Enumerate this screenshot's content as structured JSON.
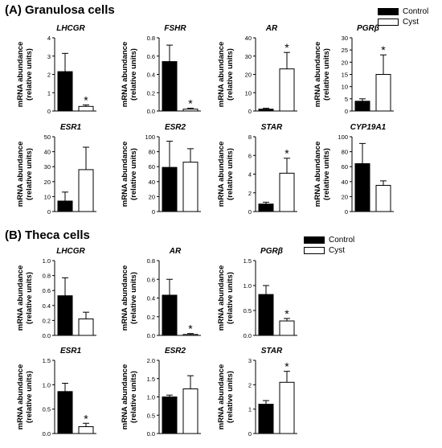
{
  "sections": [
    {
      "title": "(A) Granulosa cells",
      "legend": [
        "Control",
        "Cyst"
      ]
    },
    {
      "title": "(B) Theca cells",
      "legend": [
        "Control",
        "Cyst"
      ]
    }
  ],
  "colors": {
    "control": "#000000",
    "cyst": "#ffffff"
  },
  "chart_data": [
    {
      "type": "bar",
      "section": "Granulosa cells",
      "title": "LHCGR",
      "ylabel": "mRNA abundance (relative units)",
      "ylim": [
        0,
        4
      ],
      "yticks": [
        0,
        1,
        2,
        3,
        4
      ],
      "tick_labels": [
        "0",
        "1",
        "2",
        "3",
        "4"
      ],
      "categories": [
        "Control",
        "Cyst"
      ],
      "values": [
        2.15,
        0.25
      ],
      "errors": [
        1.0,
        0.08
      ],
      "significant": [
        false,
        true
      ]
    },
    {
      "type": "bar",
      "section": "Granulosa cells",
      "title": "FSHR",
      "ylabel": "mRNA abundance (relative units)",
      "ylim": [
        0,
        0.8
      ],
      "yticks": [
        0,
        0.2,
        0.4,
        0.6,
        0.8
      ],
      "tick_labels": [
        "0.0",
        "0.2",
        "0.4",
        "0.6",
        "0.8"
      ],
      "categories": [
        "Control",
        "Cyst"
      ],
      "values": [
        0.54,
        0.02
      ],
      "errors": [
        0.18,
        0.01
      ],
      "significant": [
        false,
        true
      ]
    },
    {
      "type": "bar",
      "section": "Granulosa cells",
      "title": "AR",
      "ylabel": "mRNA abundance (relative units)",
      "ylim": [
        0,
        40
      ],
      "yticks": [
        0,
        10,
        20,
        30,
        40
      ],
      "tick_labels": [
        "0",
        "10",
        "20",
        "30",
        "40"
      ],
      "categories": [
        "Control",
        "Cyst"
      ],
      "values": [
        1.0,
        23.0
      ],
      "errors": [
        0.5,
        9.0
      ],
      "significant": [
        false,
        true
      ]
    },
    {
      "type": "bar",
      "section": "Granulosa cells",
      "title": "PGRβ",
      "ylabel": "mRNA abundance (relative units)",
      "ylim": [
        0,
        30
      ],
      "yticks": [
        0,
        5,
        10,
        15,
        20,
        25,
        30
      ],
      "tick_labels": [
        "0",
        "5",
        "10",
        "15",
        "20",
        "25",
        "30"
      ],
      "categories": [
        "Control",
        "Cyst"
      ],
      "values": [
        4.0,
        15.0
      ],
      "errors": [
        1.0,
        8.0
      ],
      "significant": [
        false,
        true
      ]
    },
    {
      "type": "bar",
      "section": "Granulosa cells",
      "title": "ESR1",
      "ylabel": "mRNA abundance (relative units)",
      "ylim": [
        0,
        50
      ],
      "yticks": [
        0,
        10,
        20,
        30,
        40,
        50
      ],
      "tick_labels": [
        "0",
        "10",
        "20",
        "30",
        "40",
        "50"
      ],
      "categories": [
        "Control",
        "Cyst"
      ],
      "values": [
        7.0,
        28.0
      ],
      "errors": [
        6.0,
        15.0
      ],
      "significant": [
        false,
        false
      ]
    },
    {
      "type": "bar",
      "section": "Granulosa cells",
      "title": "ESR2",
      "ylabel": "mRNA abundance (relative units)",
      "ylim": [
        0,
        100
      ],
      "yticks": [
        0,
        20,
        40,
        60,
        80,
        100
      ],
      "tick_labels": [
        "0",
        "20",
        "40",
        "60",
        "80",
        "100"
      ],
      "categories": [
        "Control",
        "Cyst"
      ],
      "values": [
        59.0,
        66.0
      ],
      "errors": [
        35.0,
        18.0
      ],
      "significant": [
        false,
        false
      ]
    },
    {
      "type": "bar",
      "section": "Granulosa cells",
      "title": "STAR",
      "ylabel": "mRNA abundance (relative units)",
      "ylim": [
        0,
        8
      ],
      "yticks": [
        0,
        2,
        4,
        6,
        8
      ],
      "tick_labels": [
        "0",
        "2",
        "4",
        "6",
        "8"
      ],
      "categories": [
        "Control",
        "Cyst"
      ],
      "values": [
        0.8,
        4.1
      ],
      "errors": [
        0.2,
        1.6
      ],
      "significant": [
        false,
        true
      ]
    },
    {
      "type": "bar",
      "section": "Granulosa cells",
      "title": "CYP19A1",
      "ylabel": "mRNA abundance (relative units)",
      "ylim": [
        0,
        100
      ],
      "yticks": [
        0,
        20,
        40,
        60,
        80,
        100
      ],
      "tick_labels": [
        "0",
        "20",
        "40",
        "60",
        "80",
        "100"
      ],
      "categories": [
        "Control",
        "Cyst"
      ],
      "values": [
        64.0,
        35.0
      ],
      "errors": [
        27.0,
        6.0
      ],
      "significant": [
        false,
        false
      ]
    },
    {
      "type": "bar",
      "section": "Theca cells",
      "title": "LHCGR",
      "ylabel": "mRNA abundance (relative units)",
      "ylim": [
        0,
        1.0
      ],
      "yticks": [
        0,
        0.2,
        0.4,
        0.6,
        0.8,
        1.0
      ],
      "tick_labels": [
        "0.0",
        "0.2",
        "0.4",
        "0.6",
        "0.8",
        "1.0"
      ],
      "categories": [
        "Control",
        "Cyst"
      ],
      "values": [
        0.53,
        0.22
      ],
      "errors": [
        0.24,
        0.09
      ],
      "significant": [
        false,
        false
      ]
    },
    {
      "type": "bar",
      "section": "Theca cells",
      "title": "AR",
      "ylabel": "mRNA abundance (relative units)",
      "ylim": [
        0,
        0.8
      ],
      "yticks": [
        0,
        0.2,
        0.4,
        0.6,
        0.8
      ],
      "tick_labels": [
        "0.0",
        "0.2",
        "0.4",
        "0.6",
        "0.8"
      ],
      "categories": [
        "Control",
        "Cyst"
      ],
      "values": [
        0.43,
        0.01
      ],
      "errors": [
        0.17,
        0.01
      ],
      "significant": [
        false,
        true
      ]
    },
    {
      "type": "bar",
      "section": "Theca cells",
      "title": "PGRβ",
      "ylabel": "mRNA abundance (relative units)",
      "ylim": [
        0,
        1.5
      ],
      "yticks": [
        0,
        0.5,
        1.0,
        1.5
      ],
      "tick_labels": [
        "0.0",
        "0.5",
        "1.0",
        "1.5"
      ],
      "categories": [
        "Control",
        "Cyst"
      ],
      "values": [
        0.82,
        0.29
      ],
      "errors": [
        0.18,
        0.05
      ],
      "significant": [
        false,
        true
      ]
    },
    {
      "type": "bar",
      "section": "Theca cells",
      "title": "ESR1",
      "ylabel": "mRNA abundance (relative units)",
      "ylim": [
        0,
        1.5
      ],
      "yticks": [
        0,
        0.5,
        1.0,
        1.5
      ],
      "tick_labels": [
        "0.0",
        "0.5",
        "1.0",
        "1.5"
      ],
      "categories": [
        "Control",
        "Cyst"
      ],
      "values": [
        0.86,
        0.14
      ],
      "errors": [
        0.17,
        0.07
      ],
      "significant": [
        false,
        true
      ]
    },
    {
      "type": "bar",
      "section": "Theca cells",
      "title": "ESR2",
      "ylabel": "mRNA abundance (relative units)",
      "ylim": [
        0,
        2.0
      ],
      "yticks": [
        0,
        0.5,
        1.0,
        1.5,
        2.0
      ],
      "tick_labels": [
        "0.0",
        "0.5",
        "1.0",
        "1.5",
        "2.0"
      ],
      "categories": [
        "Control",
        "Cyst"
      ],
      "values": [
        1.0,
        1.22
      ],
      "errors": [
        0.05,
        0.36
      ],
      "significant": [
        false,
        false
      ]
    },
    {
      "type": "bar",
      "section": "Theca cells",
      "title": "STAR",
      "ylabel": "mRNA abundance (relative units)",
      "ylim": [
        0,
        3
      ],
      "yticks": [
        0,
        1,
        2,
        3
      ],
      "tick_labels": [
        "0",
        "1",
        "2",
        "3"
      ],
      "categories": [
        "Control",
        "Cyst"
      ],
      "values": [
        1.2,
        2.1
      ],
      "errors": [
        0.15,
        0.45
      ],
      "significant": [
        false,
        true
      ]
    }
  ]
}
